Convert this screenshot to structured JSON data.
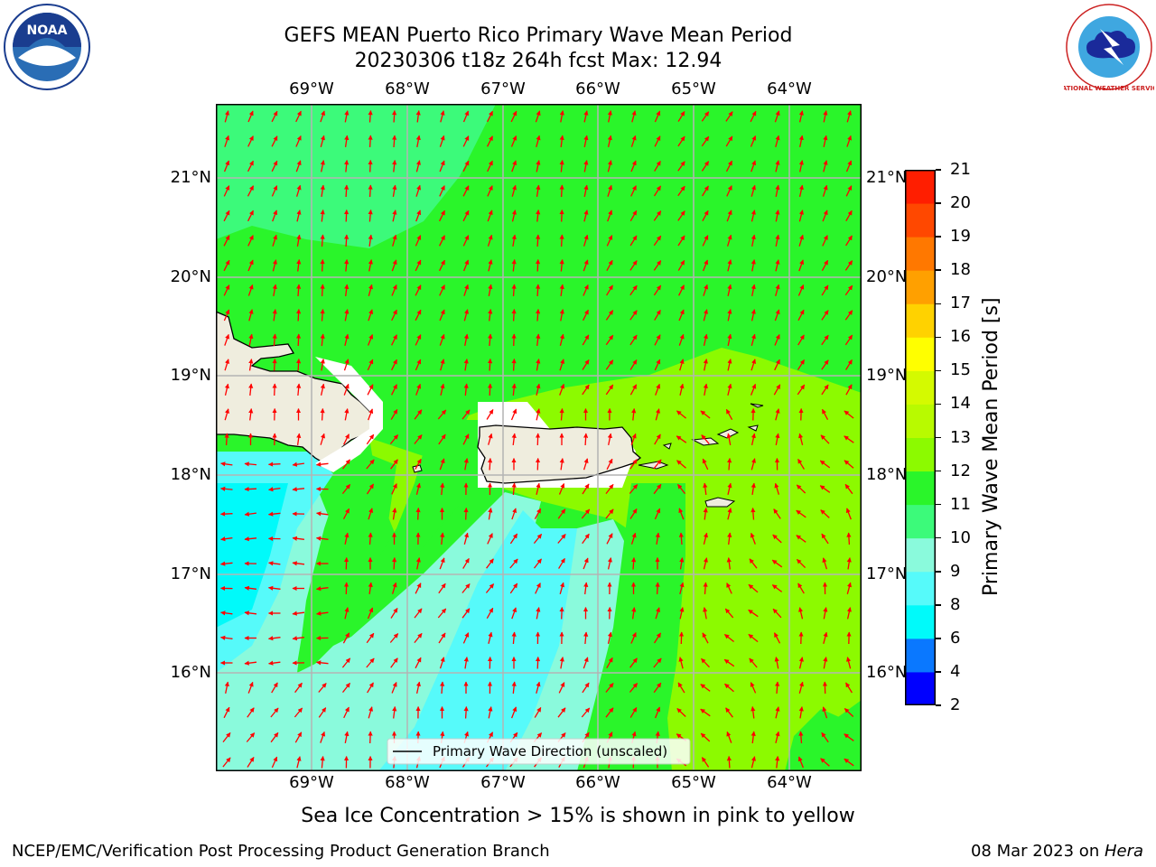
{
  "title": {
    "line1": "GEFS MEAN Puerto Rico Primary Wave Mean Period",
    "line2": "20230306 t18z 264h fcst   Max: 12.94"
  },
  "logos": {
    "left": "NOAA",
    "right": "NATIONAL WEATHER SERVICE"
  },
  "map": {
    "lon_labels": [
      "69°W",
      "68°W",
      "67°W",
      "66°W",
      "65°W",
      "64°W"
    ],
    "lat_labels": [
      "21°N",
      "20°N",
      "19°N",
      "18°N",
      "17°N",
      "16°N"
    ],
    "legend": "Primary Wave Direction (unscaled)",
    "colors": {
      "land": "#efedde",
      "c11": "#2af52a",
      "c12": "#8cfa00",
      "c10": "#3cfa7a",
      "c9": "#8afadc",
      "c8": "#56fafa",
      "c7": "#00fafa",
      "arrow": "#ff0000"
    }
  },
  "colorbar": {
    "title": "Primary Wave Mean Period [s]",
    "ticks": [
      "2",
      "4",
      "6",
      "8",
      "9",
      "10",
      "11",
      "12",
      "13",
      "14",
      "15",
      "16",
      "17",
      "18",
      "19",
      "20",
      "21"
    ],
    "colors": [
      "#0000ff",
      "#0a78ff",
      "#00fafa",
      "#56fafa",
      "#8afadc",
      "#3cfa7a",
      "#2af52a",
      "#8cfa00",
      "#b8fa00",
      "#d4fa00",
      "#ffff00",
      "#ffd200",
      "#ffa000",
      "#ff7800",
      "#ff4800",
      "#ff1e00"
    ]
  },
  "note": "Sea Ice Concentration > 15% is shown in pink to yellow",
  "footer": {
    "left": "NCEP/EMC/Verification Post Processing Product Generation Branch",
    "right_date": "08 Mar 2023 on ",
    "right_host": "Hera"
  }
}
